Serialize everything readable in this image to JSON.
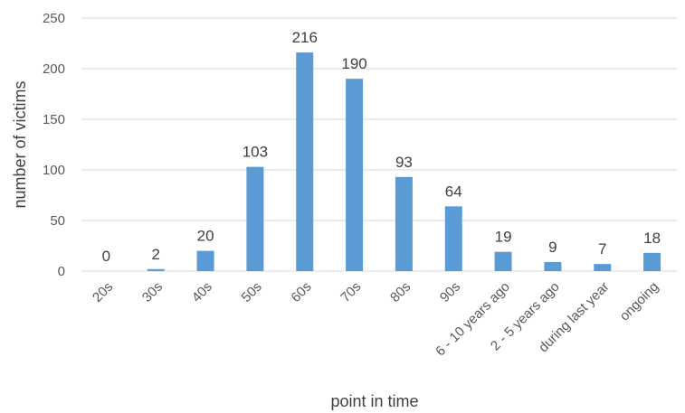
{
  "chart_data": {
    "type": "bar",
    "title": "",
    "xlabel": "point in time",
    "ylabel": "number of victims",
    "ylim": [
      0,
      250
    ],
    "yticks": [
      0,
      50,
      100,
      150,
      200,
      250
    ],
    "grid": true,
    "legend": "none",
    "bar_color": "#5b9bd5",
    "categories": [
      "20s",
      "30s",
      "40s",
      "50s",
      "60s",
      "70s",
      "80s",
      "90s",
      "6 - 10 years ago",
      "2 - 5 years ago",
      "during last year",
      "ongoing"
    ],
    "values": [
      0,
      2,
      20,
      103,
      216,
      190,
      93,
      64,
      19,
      9,
      7,
      18
    ],
    "data_labels": [
      "0",
      "2",
      "20",
      "103",
      "216",
      "190",
      "93",
      "64",
      "19",
      "9",
      "7",
      "18"
    ]
  }
}
